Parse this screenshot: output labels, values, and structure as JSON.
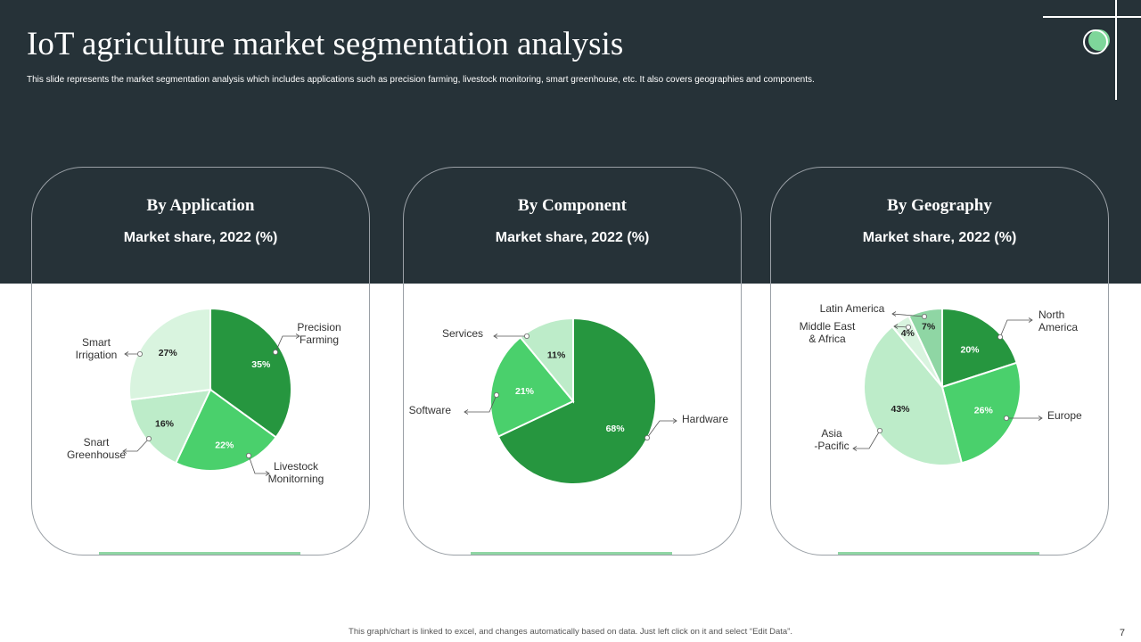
{
  "slide": {
    "title": "IoT agriculture market segmentation analysis",
    "subtitle": "This slide represents the market segmentation analysis which includes applications such as precision farming, livestock monitoring, smart greenhouse, etc. It also covers geographies and components.",
    "footer": "This graph/chart is linked to excel, and changes automatically based on data. Just left click on it and select “Edit Data”.",
    "page_number": "7"
  },
  "panels": [
    {
      "title": "By Application",
      "subtitle": "Market share, 2022 (%)"
    },
    {
      "title": "By Component",
      "subtitle": "Market share, 2022 (%)"
    },
    {
      "title": "By Geography",
      "subtitle": "Market share, 2022 (%)"
    }
  ],
  "colors": {
    "header_bg": "#263238",
    "dark_green": "#26963f",
    "medium_green": "#4ad06c",
    "light_green": "#bdecc9",
    "pale_green": "#d9f4df",
    "accent_green": "#8fd6a4"
  },
  "chart_data": [
    {
      "type": "pie",
      "title": "By Application",
      "subtitle": "Market share, 2022 (%)",
      "slices": [
        {
          "label": "Precision Farming",
          "value": 35,
          "display": "35%",
          "color": "#26963f"
        },
        {
          "label": "Livestock Monitorning",
          "value": 22,
          "display": "22%",
          "color": "#4ad06c"
        },
        {
          "label": "Snart Greenhouse",
          "value": 16,
          "display": "16%",
          "color": "#bdecc9"
        },
        {
          "label": "Smart Irrigation",
          "value": 27,
          "display": "27%",
          "color": "#d9f4df"
        }
      ]
    },
    {
      "type": "pie",
      "title": "By Component",
      "subtitle": "Market share, 2022 (%)",
      "slices": [
        {
          "label": "Hardware",
          "value": 68,
          "display": "68%",
          "color": "#26963f"
        },
        {
          "label": "Software",
          "value": 21,
          "display": "21%",
          "color": "#4ad06c"
        },
        {
          "label": "Services",
          "value": 11,
          "display": "11%",
          "color": "#bdecc9"
        }
      ]
    },
    {
      "type": "pie",
      "title": "By Geography",
      "subtitle": "Market share, 2022 (%)",
      "slices": [
        {
          "label": "North America",
          "value": 20,
          "display": "20%",
          "color": "#26963f"
        },
        {
          "label": "Europe",
          "value": 26,
          "display": "26%",
          "color": "#4ad06c"
        },
        {
          "label": "Asia -Pacific",
          "value": 43,
          "display": "43%",
          "color": "#bdecc9"
        },
        {
          "label": "Middle East & Africa",
          "value": 4,
          "display": "4%",
          "color": "#d9f4df"
        },
        {
          "label": "Latin America",
          "value": 7,
          "display": "7%",
          "color": "#8fd6a4"
        }
      ]
    }
  ]
}
